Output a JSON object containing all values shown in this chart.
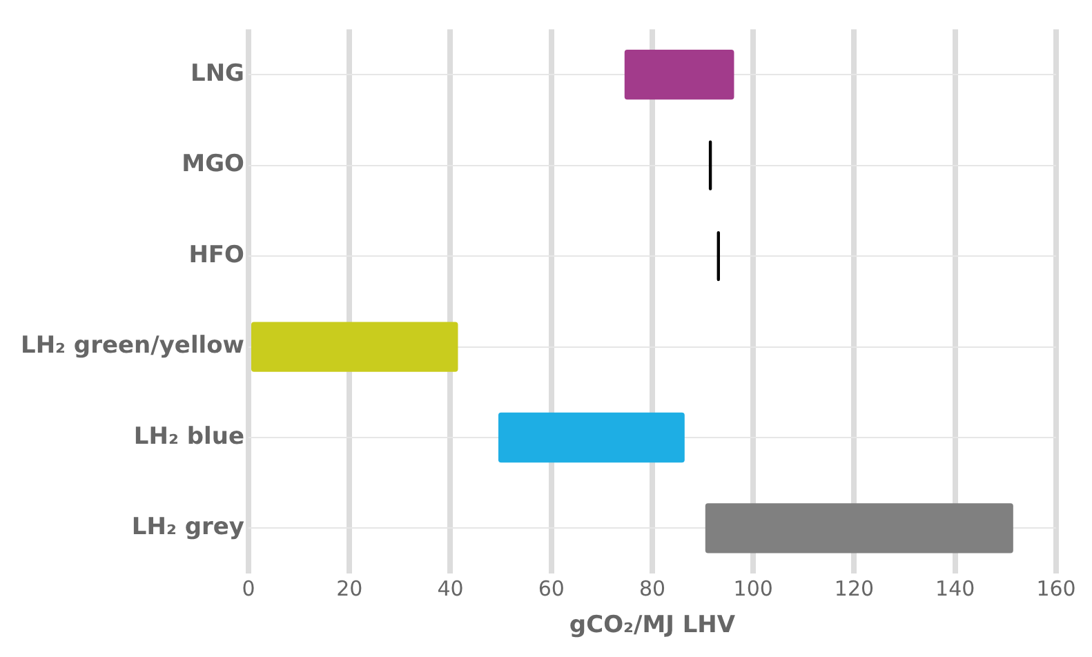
{
  "chart_data": {
    "type": "bar",
    "orientation": "horizontal",
    "xlabel": "gCO₂/MJ LHV",
    "categories": [
      "LNG",
      "MGO",
      "HFO",
      "LH₂ green/yellow",
      "LH₂ blue",
      "LH₂ grey"
    ],
    "base": [
      74.5,
      91.2,
      92.8,
      0,
      49.5,
      90.5
    ],
    "values": [
      21.7,
      0.6,
      0.6,
      41.5,
      36.9,
      61
    ],
    "colors": [
      "#a23b8b",
      "#000000",
      "#000000",
      "#c9cc1e",
      "#1eaee4",
      "#808080"
    ],
    "xlim": [
      0,
      160
    ],
    "xticks": [
      0,
      20,
      40,
      60,
      80,
      100,
      120,
      140,
      160
    ],
    "grid": true,
    "legend": false
  }
}
